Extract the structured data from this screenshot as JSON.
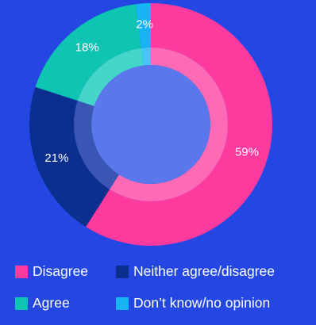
{
  "chart_data": {
    "type": "pie",
    "style": "donut",
    "categories": [
      "Disagree",
      "Neither agree/disagree",
      "Agree",
      "Don’t know/no opinion"
    ],
    "values": [
      59,
      21,
      18,
      2
    ],
    "labels": [
      "59%",
      "21%",
      "18%",
      "2%"
    ],
    "colors": [
      "#ff3a9e",
      "#0a2f8f",
      "#0ec4b2",
      "#16b4f2"
    ],
    "inner_colors": [
      "#ff6ab6",
      "#3b55b5",
      "#44d6c8",
      "#44c6f5"
    ],
    "center_color": "#5a78ec",
    "legend_position": "bottom"
  },
  "legend": {
    "rows": [
      [
        {
          "label": "Disagree",
          "color": "#ff3a9e"
        },
        {
          "label": "Neither agree/disagree",
          "color": "#0a2f8f"
        }
      ],
      [
        {
          "label": "Agree",
          "color": "#0ec4b2"
        },
        {
          "label": "Don’t know/no opinion",
          "color": "#16b4f2"
        }
      ]
    ]
  }
}
